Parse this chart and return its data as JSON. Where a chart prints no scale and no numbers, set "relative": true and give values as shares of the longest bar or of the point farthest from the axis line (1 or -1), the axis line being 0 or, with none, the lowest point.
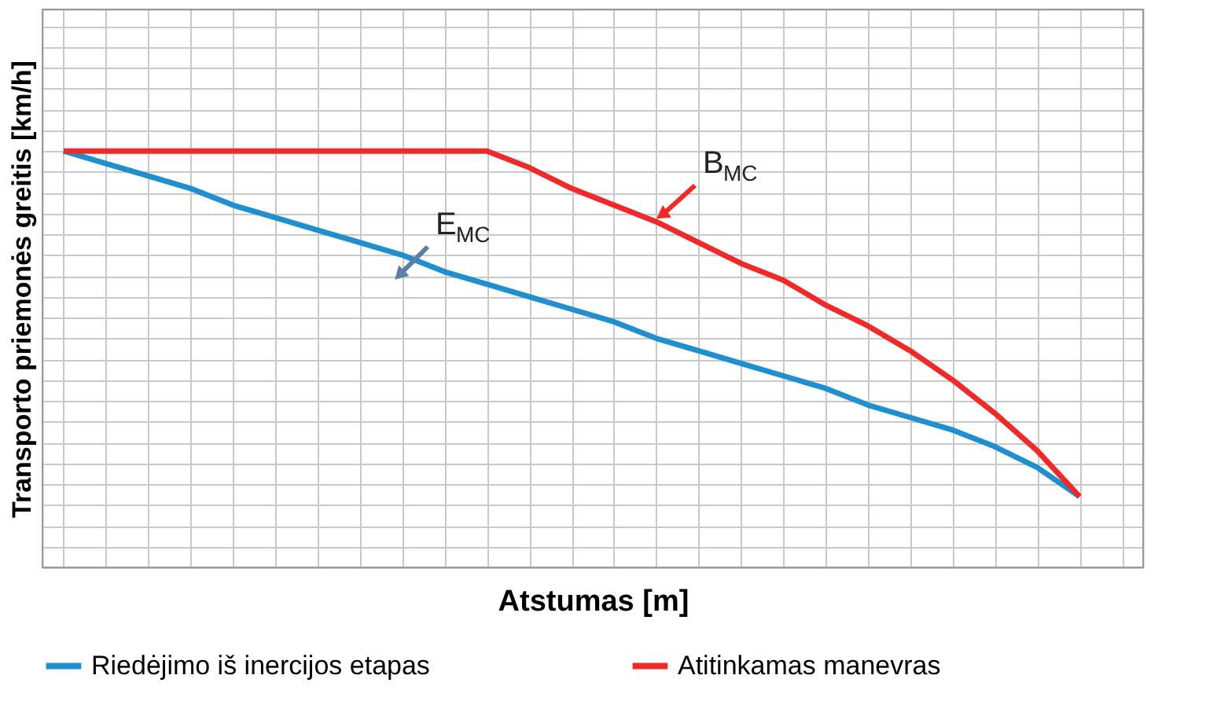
{
  "chart_data": {
    "type": "line",
    "relative": true,
    "xlabel": "Atstumas [m]",
    "ylabel": "Transporto priemonės greitis [km/h]",
    "categories": [
      null,
      null,
      null,
      null,
      null,
      null,
      null,
      null,
      null,
      null,
      null,
      null,
      null,
      null,
      null,
      null,
      null,
      null,
      null,
      null,
      null,
      null,
      null,
      null,
      null,
      null
    ],
    "series": [
      {
        "name": "Riedėjimo iš inercijos etapas",
        "color": "#1f8fd0",
        "values": [
          1.0,
          0.97,
          0.94,
          0.91,
          0.87,
          0.84,
          0.81,
          0.78,
          0.75,
          0.71,
          0.68,
          0.65,
          0.62,
          0.59,
          0.55,
          0.52,
          0.49,
          0.46,
          0.43,
          0.39,
          0.36,
          0.33,
          0.29,
          0.24,
          0.17,
          null
        ]
      },
      {
        "name": "Atitinkamas manevras",
        "color": "#ee2a2a",
        "values": [
          1.0,
          1.0,
          1.0,
          1.0,
          1.0,
          1.0,
          1.0,
          1.0,
          1.0,
          1.0,
          1.0,
          0.96,
          0.91,
          0.87,
          0.83,
          0.78,
          0.73,
          0.69,
          0.63,
          0.58,
          0.52,
          0.45,
          0.37,
          0.28,
          0.17,
          null
        ]
      }
    ],
    "annotations": [
      "E$_{MC}$",
      "B$_{MC}$"
    ],
    "grid": true,
    "legend": "bottom",
    "tick_labels": false,
    "line_style": "solid",
    "marker": "none"
  }
}
